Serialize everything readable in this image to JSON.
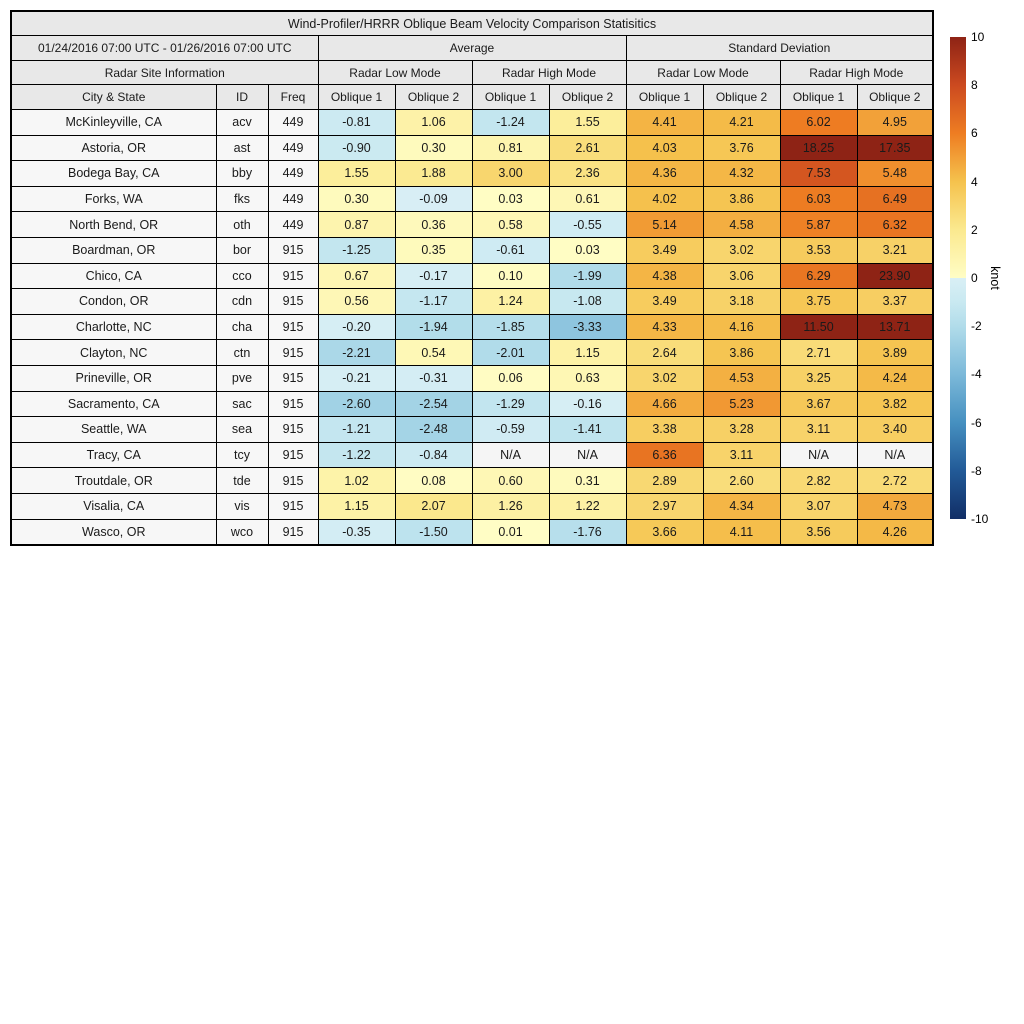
{
  "chart_data": {
    "type": "table",
    "title": "Wind-Profiler/HRRR Oblique Beam Velocity Comparison Statisitics",
    "date_range": "01/24/2016 07:00 UTC - 01/26/2016 07:00 UTC",
    "group_headers": {
      "average": "Average",
      "std": "Standard Deviation"
    },
    "site_info_header": "Radar Site Information",
    "mode_headers": [
      "Radar Low Mode",
      "Radar High Mode",
      "Radar Low Mode",
      "Radar High Mode"
    ],
    "column_headers": {
      "city": "City & State",
      "id": "ID",
      "freq": "Freq"
    },
    "oblique_labels": [
      "Oblique 1",
      "Oblique 2"
    ],
    "na_text": "N/A",
    "value_range": [
      -10,
      10
    ],
    "rows": [
      {
        "city": "McKinleyville, CA",
        "id": "acv",
        "freq": "449",
        "values": [
          -0.81,
          1.06,
          -1.24,
          1.55,
          4.41,
          4.21,
          6.02,
          4.95
        ]
      },
      {
        "city": "Astoria, OR",
        "id": "ast",
        "freq": "449",
        "values": [
          -0.9,
          0.3,
          0.81,
          2.61,
          4.03,
          3.76,
          18.25,
          17.35
        ]
      },
      {
        "city": "Bodega Bay, CA",
        "id": "bby",
        "freq": "449",
        "values": [
          1.55,
          1.88,
          3.0,
          2.36,
          4.36,
          4.32,
          7.53,
          5.48
        ]
      },
      {
        "city": "Forks, WA",
        "id": "fks",
        "freq": "449",
        "values": [
          0.3,
          -0.09,
          0.03,
          0.61,
          4.02,
          3.86,
          6.03,
          6.49
        ]
      },
      {
        "city": "North Bend, OR",
        "id": "oth",
        "freq": "449",
        "values": [
          0.87,
          0.36,
          0.58,
          -0.55,
          5.14,
          4.58,
          5.87,
          6.32
        ]
      },
      {
        "city": "Boardman, OR",
        "id": "bor",
        "freq": "915",
        "values": [
          -1.25,
          0.35,
          -0.61,
          0.03,
          3.49,
          3.02,
          3.53,
          3.21
        ]
      },
      {
        "city": "Chico, CA",
        "id": "cco",
        "freq": "915",
        "values": [
          0.67,
          -0.17,
          0.1,
          -1.99,
          4.38,
          3.06,
          6.29,
          23.9
        ]
      },
      {
        "city": "Condon, OR",
        "id": "cdn",
        "freq": "915",
        "values": [
          0.56,
          -1.17,
          1.24,
          -1.08,
          3.49,
          3.18,
          3.75,
          3.37
        ]
      },
      {
        "city": "Charlotte, NC",
        "id": "cha",
        "freq": "915",
        "values": [
          -0.2,
          -1.94,
          -1.85,
          -3.33,
          4.33,
          4.16,
          11.5,
          13.71
        ]
      },
      {
        "city": "Clayton, NC",
        "id": "ctn",
        "freq": "915",
        "values": [
          -2.21,
          0.54,
          -2.01,
          1.15,
          2.64,
          3.86,
          2.71,
          3.89
        ]
      },
      {
        "city": "Prineville, OR",
        "id": "pve",
        "freq": "915",
        "values": [
          -0.21,
          -0.31,
          0.06,
          0.63,
          3.02,
          4.53,
          3.25,
          4.24
        ]
      },
      {
        "city": "Sacramento, CA",
        "id": "sac",
        "freq": "915",
        "values": [
          -2.6,
          -2.54,
          -1.29,
          -0.16,
          4.66,
          5.23,
          3.67,
          3.82
        ]
      },
      {
        "city": "Seattle, WA",
        "id": "sea",
        "freq": "915",
        "values": [
          -1.21,
          -2.48,
          -0.59,
          -1.41,
          3.38,
          3.28,
          3.11,
          3.4
        ]
      },
      {
        "city": "Tracy, CA",
        "id": "tcy",
        "freq": "915",
        "values": [
          -1.22,
          -0.84,
          null,
          null,
          6.36,
          3.11,
          null,
          null
        ]
      },
      {
        "city": "Troutdale, OR",
        "id": "tde",
        "freq": "915",
        "values": [
          1.02,
          0.08,
          0.6,
          0.31,
          2.89,
          2.6,
          2.82,
          2.72
        ]
      },
      {
        "city": "Visalia, CA",
        "id": "vis",
        "freq": "915",
        "values": [
          1.15,
          2.07,
          1.26,
          1.22,
          2.97,
          4.34,
          3.07,
          4.73
        ]
      },
      {
        "city": "Wasco, OR",
        "id": "wco",
        "freq": "915",
        "values": [
          -0.35,
          -1.5,
          0.01,
          -1.76,
          3.66,
          4.11,
          3.56,
          4.26
        ]
      }
    ],
    "colorbar": {
      "label": "knot",
      "min": -10,
      "max": 10,
      "ticks": [
        10,
        8,
        6,
        4,
        2,
        0,
        -2,
        -4,
        -6,
        -8,
        -10
      ]
    },
    "colors": {
      "header_fill": "#e8e8e8",
      "label_cell_fill": "#f7f7f7",
      "na_cell_fill": "#f5f5f5",
      "border": "#000000",
      "anchors_positive": [
        [
          0,
          "#fffdc5"
        ],
        [
          2,
          "#fbe98f"
        ],
        [
          4,
          "#f5c24d"
        ],
        [
          6,
          "#ee7d22"
        ],
        [
          8,
          "#cc4a20"
        ],
        [
          10,
          "#8e2315"
        ]
      ],
      "anchors_negative": [
        [
          -10,
          "#112e66"
        ],
        [
          -8,
          "#225a97"
        ],
        [
          -6,
          "#4690c0"
        ],
        [
          -4,
          "#7cb9d9"
        ],
        [
          -2,
          "#b1dcea"
        ],
        [
          -1,
          "#c9e9f1"
        ],
        [
          0,
          "#d9eff5"
        ]
      ]
    }
  }
}
